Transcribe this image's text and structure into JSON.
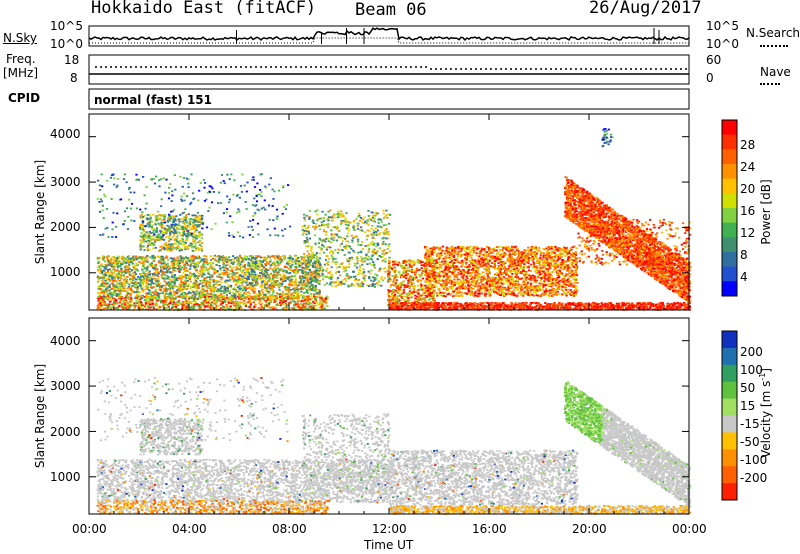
{
  "header": {
    "station": "Hokkaido East (fitACF)",
    "beam": "Beam 06",
    "date": "26/Aug/2017"
  },
  "noise_panel": {
    "left_label": "N.Sky",
    "right_label": "N.Search",
    "left_ticks": [
      "10^5",
      "10^0"
    ],
    "right_ticks": [
      "10^5",
      "10^0"
    ]
  },
  "freq_panel": {
    "left_label_1": "Freq.",
    "left_label_2": "[MHz]",
    "right_label": "Nave",
    "left_ticks": [
      "18",
      "8"
    ],
    "right_ticks": [
      "60",
      "0"
    ]
  },
  "cpid_panel": {
    "label": "CPID",
    "text": "normal (fast) 151"
  },
  "x_axis": {
    "label": "Time UT",
    "ticks": [
      "00:00",
      "04:00",
      "08:00",
      "12:00",
      "16:00",
      "20:00",
      "00:00"
    ]
  },
  "power_panel": {
    "ylabel": "Slant Range [km]",
    "yticks": [
      "4000",
      "3000",
      "2000",
      "1000"
    ],
    "colorbar_label": "Power [dB]",
    "colorbar_ticks": [
      "28",
      "24",
      "20",
      "16",
      "12",
      "8",
      "4"
    ],
    "colorbar_colors": [
      "#ff0000",
      "#ff3000",
      "#ff6000",
      "#ff9000",
      "#ffc000",
      "#d0e000",
      "#80d040",
      "#40b050",
      "#409070",
      "#3070a0",
      "#2050d0",
      "#0000ff"
    ]
  },
  "velocity_panel": {
    "ylabel": "Slant Range [km]",
    "yticks": [
      "4000",
      "3000",
      "2000",
      "1000"
    ],
    "colorbar_label": "Velocity [m s",
    "colorbar_label_sup": "-1",
    "colorbar_label_end": "]",
    "colorbar_ticks": [
      "200",
      "100",
      "50",
      "15",
      "-15",
      "-50",
      "-100",
      "-200"
    ],
    "colorbar_colors": [
      "#1030c0",
      "#2070b0",
      "#30a060",
      "#60c040",
      "#a0e060",
      "#c8c8c8",
      "#ffc000",
      "#ff9000",
      "#ff6000",
      "#ff2000"
    ]
  },
  "chart_data": {
    "type": "heatmap",
    "x_range_hours": [
      0,
      24
    ],
    "y_range_km": [
      180,
      4500
    ],
    "power_regions": [
      {
        "t0": 0.4,
        "t1": 9.0,
        "r0": 400,
        "r1": 1400,
        "level": "mixed-high"
      },
      {
        "t0": 13.5,
        "t1": 19.5,
        "r0": 500,
        "r1": 1500,
        "level": "high"
      },
      {
        "t0": 19.0,
        "t1": 24.0,
        "r0": 600,
        "r1": 2800,
        "level": "very-high"
      },
      {
        "t0": 12.0,
        "t1": 24.0,
        "r0": 200,
        "r1": 350,
        "level": "very-high"
      }
    ],
    "velocity_regions": [
      {
        "t0": 0.4,
        "t1": 12.0,
        "r0": 400,
        "r1": 2200,
        "level": "near-zero"
      },
      {
        "t0": 12.0,
        "t1": 19.5,
        "r0": 400,
        "r1": 1600,
        "level": "near-zero"
      },
      {
        "t0": 19.0,
        "t1": 24.0,
        "r0": 600,
        "r1": 2700,
        "level": "near-zero"
      }
    ]
  }
}
